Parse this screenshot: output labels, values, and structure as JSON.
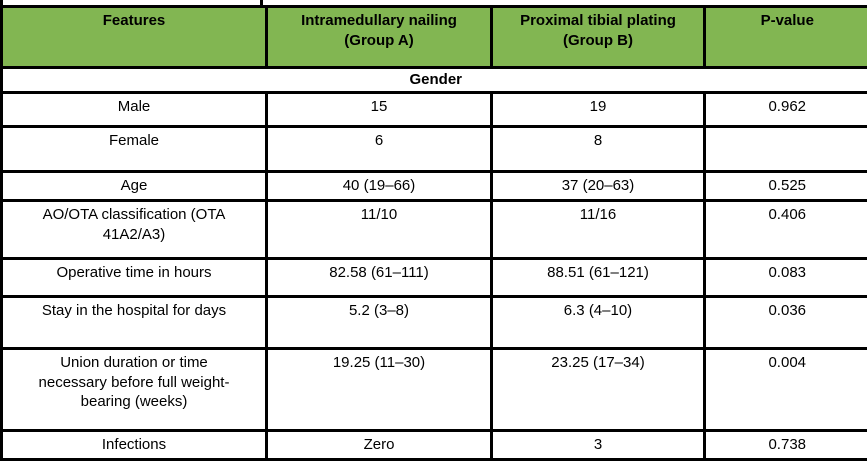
{
  "colors": {
    "header_bg": "#82B652",
    "border": "#000000",
    "header_text": "#000000"
  },
  "table": {
    "columns": [
      {
        "label": "Features"
      },
      {
        "label": "Intramedullary nailing\n(Group A)"
      },
      {
        "label": "Proximal tibial plating\n(Group B)"
      },
      {
        "label": "P-value"
      }
    ],
    "section_label": "Gender",
    "rows": [
      {
        "feature": "Male",
        "group_a": "15",
        "group_b": "19",
        "p_value": "0.962"
      },
      {
        "feature": "Female",
        "group_a": "6",
        "group_b": "8",
        "p_value": ""
      },
      {
        "feature": "Age",
        "group_a": "40 (19–66)",
        "group_b": "37 (20–63)",
        "p_value": "0.525"
      },
      {
        "feature": "AO/OTA classification (OTA\n41A2/A3)",
        "group_a": "11/10",
        "group_b": "11/16",
        "p_value": "0.406"
      },
      {
        "feature": "Operative time in hours",
        "group_a": "82.58 (61–111)",
        "group_b": "88.51 (61–121)",
        "p_value": "0.083"
      },
      {
        "feature": "Stay in the hospital for days",
        "group_a": "5.2 (3–8)",
        "group_b": "6.3 (4–10)",
        "p_value": "0.036"
      },
      {
        "feature": "Union duration or time\nnecessary before full weight-\nbearing (weeks)",
        "group_a": "19.25 (11–30)",
        "group_b": "23.25 (17–34)",
        "p_value": "0.004"
      },
      {
        "feature": "Infections",
        "group_a": "Zero",
        "group_b": "3",
        "p_value": "0.738"
      }
    ]
  }
}
